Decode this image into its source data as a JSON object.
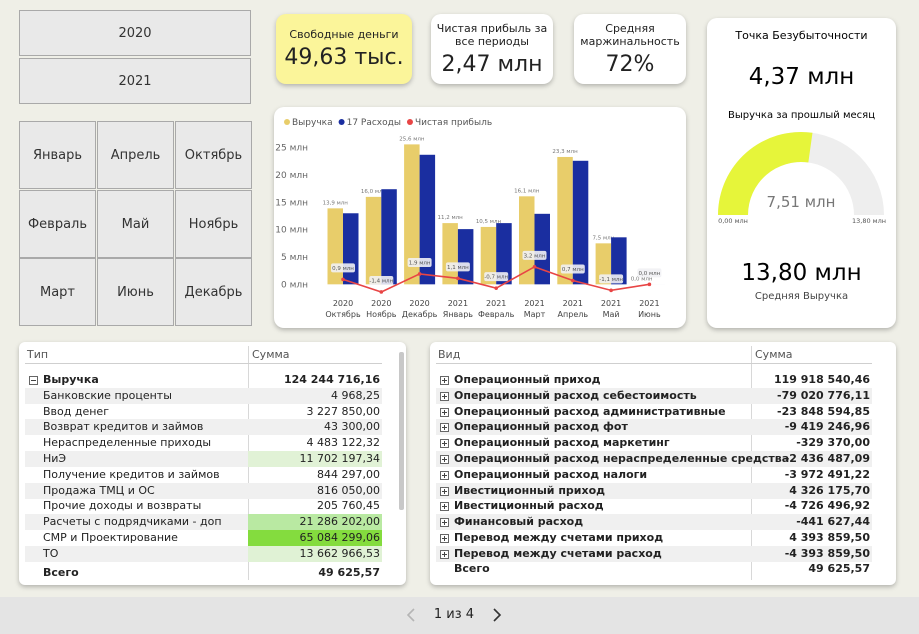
{
  "slicers": {
    "years": [
      "2020",
      "2021"
    ],
    "months": [
      [
        "Январь",
        "Апрель",
        "Октябрь"
      ],
      [
        "Февраль",
        "Май",
        "Ноябрь"
      ],
      [
        "Март",
        "Июнь",
        "Декабрь"
      ]
    ]
  },
  "cards": [
    {
      "title": "Свободные деньги",
      "value": "49,63 тыс."
    },
    {
      "title": "Чистая прибыль за все периоды",
      "value": "2,47 млн"
    },
    {
      "title": "Средняя маржинальность",
      "value": "72%"
    }
  ],
  "breakeven": {
    "title": "Точка Безубыточности",
    "value": "4,37 млн",
    "average_value": "13,80 млн",
    "average_title": "Средняя Выручка"
  },
  "chart_data": [
    {
      "type": "combo",
      "categories": [
        [
          "2020",
          "Октябрь"
        ],
        [
          "2020",
          "Ноябрь"
        ],
        [
          "2020",
          "Декабрь"
        ],
        [
          "2021",
          "Январь"
        ],
        [
          "2021",
          "Февраль"
        ],
        [
          "2021",
          "Март"
        ],
        [
          "2021",
          "Апрель"
        ],
        [
          "2021",
          "Май"
        ],
        [
          "2021",
          "Июнь"
        ]
      ],
      "series": [
        {
          "name": "Выручка",
          "type": "bar",
          "color": "#e8cd6a",
          "values": [
            13.9,
            16.0,
            25.6,
            11.2,
            10.5,
            16.1,
            23.3,
            7.5,
            0.0
          ],
          "value_labels": [
            "13,9 млн",
            "16,0 млн",
            "25,6 млн",
            "11,2 млн",
            "10,5 млн",
            "16,1 млн",
            "23,3 млн",
            "7,5 млн",
            "0,0 млн"
          ]
        },
        {
          "name": "17 Расходы",
          "type": "bar",
          "color": "#1a2ea0",
          "values": [
            13.0,
            17.4,
            23.7,
            10.1,
            11.2,
            12.9,
            22.6,
            8.6,
            0.0
          ]
        },
        {
          "name": "Чистая прибыль",
          "type": "line",
          "color": "#e84545",
          "values": [
            0.9,
            -1.4,
            1.9,
            1.1,
            -0.7,
            3.2,
            0.7,
            -1.1,
            0.0
          ],
          "value_labels": [
            "0,9 млн",
            "-1,4 млн",
            "1,9 млн",
            "1,1 млн",
            "-0,7 млн",
            "3,2 млн",
            "0,7 млн",
            "-1,1 млн",
            "0,0 млн"
          ]
        }
      ],
      "ylim": [
        -2.5,
        27.5
      ],
      "yticks": [
        {
          "value": 0,
          "label": "0 млн"
        },
        {
          "value": 5,
          "label": "5 млн"
        },
        {
          "value": 10,
          "label": "10 млн"
        },
        {
          "value": 15,
          "label": "15 млн"
        },
        {
          "value": 20,
          "label": "20 млн"
        },
        {
          "value": 25,
          "label": "25 млн"
        }
      ],
      "grid": false
    },
    {
      "type": "gauge",
      "title": "Выручка за прошлый месяц",
      "values": [
        7.51
      ],
      "value_labels": [
        "7,51 млн"
      ],
      "color": "#e6f53a",
      "track_color": "#eeeeee",
      "ylim": [
        0,
        13.8
      ],
      "yticks": [
        {
          "value": 0,
          "label": "0,00 млн"
        },
        {
          "value": 13.8,
          "label": "13,80 млн"
        }
      ]
    }
  ],
  "tables": [
    {
      "columns": [
        "Тип",
        "Сумма"
      ],
      "group": [
        "Выручка",
        "124 244 716,16"
      ],
      "rows": [
        [
          "Банковские проценты",
          "4 968,25"
        ],
        [
          "Ввод денег",
          "3 227 850,00"
        ],
        [
          "Возврат кредитов и займов",
          "43 300,00"
        ],
        [
          "Нераспределенные приходы",
          "4 483 122,32"
        ],
        [
          "НиЭ",
          "11 702 197,34"
        ],
        [
          "Получение кредитов и займов",
          "844 297,00"
        ],
        [
          "Продажа ТМЦ и ОС",
          "816 050,00"
        ],
        [
          "Прочие доходы и возвраты",
          "205 760,45"
        ],
        [
          "Расчеты с подрядчиками - доп",
          "21 286 202,00"
        ],
        [
          "СМР и Проектирование",
          "65 084 299,06"
        ],
        [
          "ТО",
          "13 662 966,53"
        ]
      ],
      "total": [
        "Всего",
        "49 625,57"
      ]
    },
    {
      "columns": [
        "Вид",
        "Сумма"
      ],
      "rows": [
        [
          "Операционный приход",
          "119 918 540,46"
        ],
        [
          "Операционный расход себестоимость",
          "-79 020 776,11"
        ],
        [
          "Операционный расход административные",
          "-23 848 594,85"
        ],
        [
          "Операционный расход фот",
          "-9 419 246,96"
        ],
        [
          "Операционный расход маркетинг",
          "-329 370,00"
        ],
        [
          "Операционный расход нераспределенные средства",
          "-2 436 487,09"
        ],
        [
          "Операционный расход налоги",
          "-3 972 491,22"
        ],
        [
          "Ивестиционный приход",
          "4 326 175,70"
        ],
        [
          "Ивестиционный расход",
          "-4 726 496,92"
        ],
        [
          "Финансовый расход",
          "-441 627,44"
        ],
        [
          "Перевод между счетами приход",
          "4 393 859,50"
        ],
        [
          "Перевод между счетами расход",
          "-4 393 859,50"
        ]
      ],
      "total": [
        "Всего",
        "49 625,57"
      ]
    }
  ],
  "pager": "1 из 4"
}
